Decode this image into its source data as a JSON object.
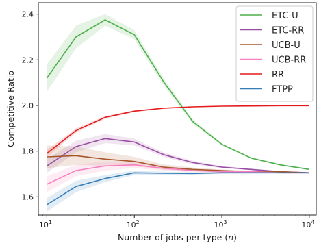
{
  "chart_data": {
    "type": "line",
    "title": "",
    "xlabel": "Number of jobs per type (",
    "xlabel_var": "n",
    "xlabel_close": ")",
    "ylabel": "Competitive Ratio",
    "xscale": "log",
    "xlim": [
      8,
      12000
    ],
    "ylim": [
      1.52,
      2.45
    ],
    "x_ticks": [
      10,
      100,
      1000,
      10000
    ],
    "x_tick_labels": [
      [
        "10",
        "1"
      ],
      [
        "10",
        "2"
      ],
      [
        "10",
        "3"
      ],
      [
        "10",
        "4"
      ]
    ],
    "y_ticks": [
      1.6,
      1.8,
      2.0,
      2.2,
      2.4
    ],
    "y_tick_labels": [
      "1.6",
      "1.8",
      "2.0",
      "2.2",
      "2.4"
    ],
    "grid": false,
    "legend_position": "top-right",
    "x": [
      10,
      21.5,
      46.4,
      100,
      215,
      464,
      1000,
      2150,
      4640,
      10000
    ],
    "series": [
      {
        "name": "ETC-U",
        "color": "#4daf4a",
        "values": [
          2.12,
          2.3,
          2.375,
          2.31,
          2.105,
          1.93,
          1.83,
          1.77,
          1.74,
          1.72
        ],
        "band": [
          0.06,
          0.05,
          0.025,
          0.02,
          0.015,
          0.01,
          0.005,
          0.004,
          0.003,
          0.003
        ]
      },
      {
        "name": "ETC-RR",
        "color": "#984ea3",
        "values": [
          1.735,
          1.82,
          1.855,
          1.84,
          1.785,
          1.75,
          1.73,
          1.72,
          1.71,
          1.705
        ],
        "band": [
          0.03,
          0.025,
          0.02,
          0.015,
          0.01,
          0.008,
          0.005,
          0.004,
          0.003,
          0.003
        ]
      },
      {
        "name": "UCB-U",
        "color": "#a65628",
        "values": [
          1.775,
          1.78,
          1.765,
          1.755,
          1.73,
          1.72,
          1.715,
          1.71,
          1.71,
          1.705
        ],
        "band": [
          0.05,
          0.04,
          0.03,
          0.02,
          0.012,
          0.008,
          0.005,
          0.004,
          0.003,
          0.003
        ]
      },
      {
        "name": "UCB-RR",
        "color": "#f781bf",
        "values": [
          1.655,
          1.715,
          1.735,
          1.74,
          1.725,
          1.715,
          1.71,
          1.71,
          1.705,
          1.705
        ],
        "band": [
          0.035,
          0.025,
          0.02,
          0.015,
          0.01,
          0.008,
          0.005,
          0.004,
          0.003,
          0.003
        ]
      },
      {
        "name": "RR",
        "color": "#e41a1c",
        "values": [
          1.79,
          1.89,
          1.948,
          1.975,
          1.988,
          1.994,
          1.997,
          1.998,
          1.999,
          1.999
        ],
        "band": [
          0.015,
          0.01,
          0.006,
          0.004,
          0.003,
          0.002,
          0.001,
          0.001,
          0.001,
          0.001
        ]
      },
      {
        "name": "FTPP",
        "color": "#377eb8",
        "values": [
          1.565,
          1.645,
          1.68,
          1.705,
          1.703,
          1.702,
          1.705,
          1.705,
          1.705,
          1.705
        ],
        "band": [
          0.03,
          0.025,
          0.015,
          0.01,
          0.007,
          0.005,
          0.004,
          0.003,
          0.002,
          0.002
        ]
      }
    ]
  }
}
